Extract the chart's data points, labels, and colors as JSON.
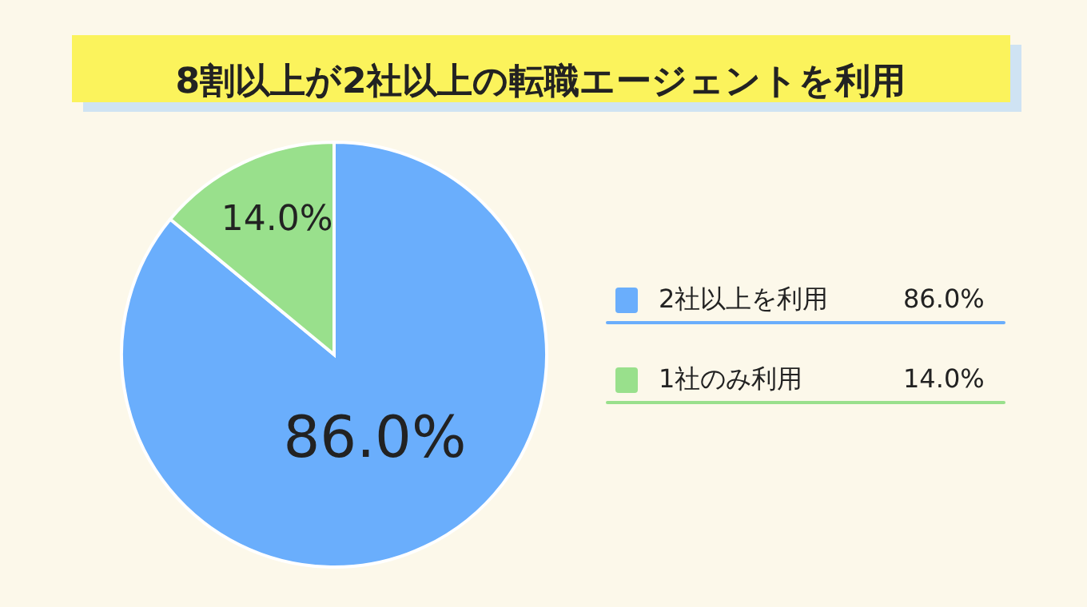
{
  "chart_data": {
    "type": "pie",
    "title": "8割以上が2社以上の転職エージェントを利用",
    "categories": [
      "2社以上を利用",
      "1社のみ利用"
    ],
    "values": [
      86.0,
      14.0
    ],
    "colors": [
      "#6aaefc",
      "#99e08c"
    ],
    "value_labels": [
      "86.0%",
      "14.0%"
    ],
    "legend": "right"
  }
}
